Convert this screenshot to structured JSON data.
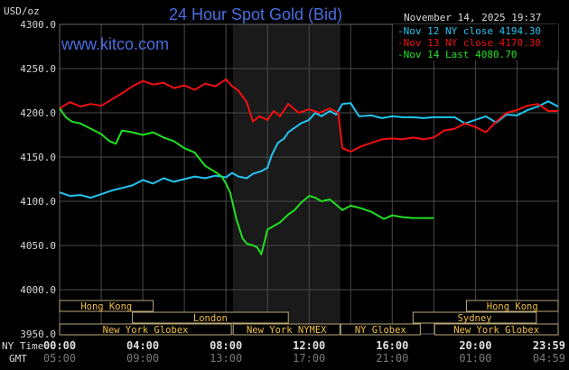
{
  "chart_data": {
    "type": "line",
    "title": "24 Hour Spot Gold (Bid)",
    "watermark": "www.kitco.com",
    "timestamp": "November 14, 2025 19:37",
    "ylabel": "USD/oz",
    "ylim": [
      3950,
      4300
    ],
    "yticks": [
      "4300.0",
      "4250.0",
      "4200.0",
      "4150.0",
      "4100.0",
      "4050.0",
      "4000.0",
      "3950.0"
    ],
    "xlim_hours": [
      0,
      23.98
    ],
    "x_axis_rows": [
      {
        "label": "NY Time",
        "ticks": [
          "00:00",
          "04:00",
          "08:00",
          "12:00",
          "16:00",
          "20:00",
          "23:59"
        ]
      },
      {
        "label": "GMT",
        "ticks": [
          "05:00",
          "09:00",
          "13:00",
          "17:00",
          "21:00",
          "01:00",
          "04:59"
        ]
      }
    ],
    "grid": true,
    "legend_position": "top-right",
    "highlighted_period_hours": [
      8.33,
      13.5
    ],
    "colors": {
      "title": "#4a6ee0",
      "nov12": "#22c4f0",
      "nov13": "#f01010",
      "nov14": "#20e020",
      "session_text": "#f0c040",
      "session_border": "#b8a878",
      "grid": "#4a4a4a"
    },
    "series": [
      {
        "name": "Nov 12 NY close",
        "value": "4194.30",
        "color": "#22c4f0",
        "x": [
          0,
          0.5,
          1,
          1.5,
          2,
          2.5,
          3,
          3.5,
          4,
          4.5,
          5,
          5.5,
          6,
          6.5,
          7,
          7.5,
          8,
          8.3,
          8.6,
          9,
          9.3,
          9.7,
          10,
          10.2,
          10.5,
          10.8,
          11,
          11.3,
          11.6,
          12,
          12.3,
          12.6,
          13,
          13.3,
          13.6,
          14,
          14.4,
          15,
          15.5,
          16,
          16.5,
          17,
          17.5,
          18,
          18.5,
          19,
          19.5,
          20,
          20.5,
          21,
          21.5,
          22,
          22.5,
          23,
          23.5,
          23.98
        ],
        "y": [
          4110,
          4106,
          4107,
          4104,
          4108,
          4112,
          4115,
          4118,
          4124,
          4120,
          4126,
          4122,
          4125,
          4128,
          4126,
          4129,
          4127,
          4132,
          4128,
          4126,
          4131,
          4134,
          4138,
          4152,
          4166,
          4171,
          4178,
          4183,
          4188,
          4192,
          4200,
          4196,
          4202,
          4198,
          4210,
          4211,
          4196,
          4197,
          4194,
          4196,
          4195,
          4195,
          4194,
          4195,
          4195,
          4195,
          4188,
          4192,
          4196,
          4189,
          4198,
          4197,
          4203,
          4207,
          4213,
          4207
        ]
      },
      {
        "name": "Nov 13 NY close",
        "value": "4170.30",
        "color": "#f01010",
        "x": [
          0,
          0.5,
          1,
          1.5,
          2,
          2.5,
          3,
          3.5,
          4,
          4.5,
          5,
          5.5,
          6,
          6.5,
          7,
          7.5,
          8,
          8.3,
          8.6,
          9,
          9.3,
          9.6,
          10,
          10.3,
          10.6,
          11,
          11.5,
          12,
          12.5,
          13,
          13.4,
          13.6,
          14,
          14.5,
          15,
          15.5,
          16,
          16.5,
          17,
          17.5,
          18,
          18.5,
          19,
          19.5,
          20,
          20.5,
          21,
          21.5,
          22,
          22.5,
          23,
          23.5,
          23.98
        ],
        "y": [
          4205,
          4212,
          4207,
          4210,
          4208,
          4215,
          4222,
          4230,
          4236,
          4232,
          4234,
          4228,
          4231,
          4226,
          4233,
          4230,
          4238,
          4230,
          4225,
          4212,
          4190,
          4196,
          4192,
          4202,
          4196,
          4210,
          4200,
          4204,
          4200,
          4205,
          4200,
          4160,
          4156,
          4162,
          4166,
          4170,
          4171,
          4170,
          4172,
          4170,
          4172,
          4180,
          4182,
          4188,
          4184,
          4178,
          4190,
          4200,
          4203,
          4208,
          4210,
          4202,
          4202
        ]
      },
      {
        "name": "Nov 14 Last",
        "value": "4080.70",
        "color": "#20e020",
        "x": [
          0,
          0.3,
          0.6,
          1,
          1.5,
          2,
          2.4,
          2.7,
          3,
          3.5,
          4,
          4.5,
          5,
          5.5,
          6,
          6.5,
          7,
          7.5,
          7.8,
          8,
          8.2,
          8.5,
          8.8,
          9,
          9.3,
          9.5,
          9.7,
          10,
          10.3,
          10.6,
          11,
          11.3,
          11.6,
          12,
          12.3,
          12.6,
          13,
          13.3,
          13.6,
          14,
          14.5,
          15,
          15.3,
          15.6,
          16,
          16.5,
          17,
          17.5,
          18
        ],
        "y": [
          4205,
          4195,
          4190,
          4188,
          4182,
          4176,
          4168,
          4165,
          4180,
          4178,
          4175,
          4178,
          4172,
          4168,
          4160,
          4155,
          4140,
          4133,
          4128,
          4120,
          4110,
          4080,
          4058,
          4052,
          4050,
          4048,
          4040,
          4068,
          4072,
          4076,
          4085,
          4090,
          4098,
          4106,
          4104,
          4100,
          4102,
          4096,
          4090,
          4095,
          4092,
          4088,
          4084,
          4080,
          4084,
          4082,
          4081,
          4081,
          4081
        ]
      }
    ],
    "sessions": [
      {
        "label": "Hong Kong",
        "row": 1,
        "start": 0,
        "end": 4.5
      },
      {
        "label": "Hong Kong",
        "row": 1,
        "start": 19.57,
        "end": 23.98
      },
      {
        "label": "London",
        "row": 2,
        "start": 3.5,
        "end": 11
      },
      {
        "label": "Sydney",
        "row": 2,
        "start": 17,
        "end": 22.93
      },
      {
        "label": "New York Globex",
        "row": 3,
        "start": 0,
        "end": 8.26
      },
      {
        "label": "New York NYMEX",
        "row": 3,
        "start": 8.35,
        "end": 13.48
      },
      {
        "label": "NY Globex",
        "row": 3,
        "start": 13.52,
        "end": 17.35
      },
      {
        "label": "New York Globex",
        "row": 3,
        "start": 18.04,
        "end": 23.98
      }
    ]
  }
}
